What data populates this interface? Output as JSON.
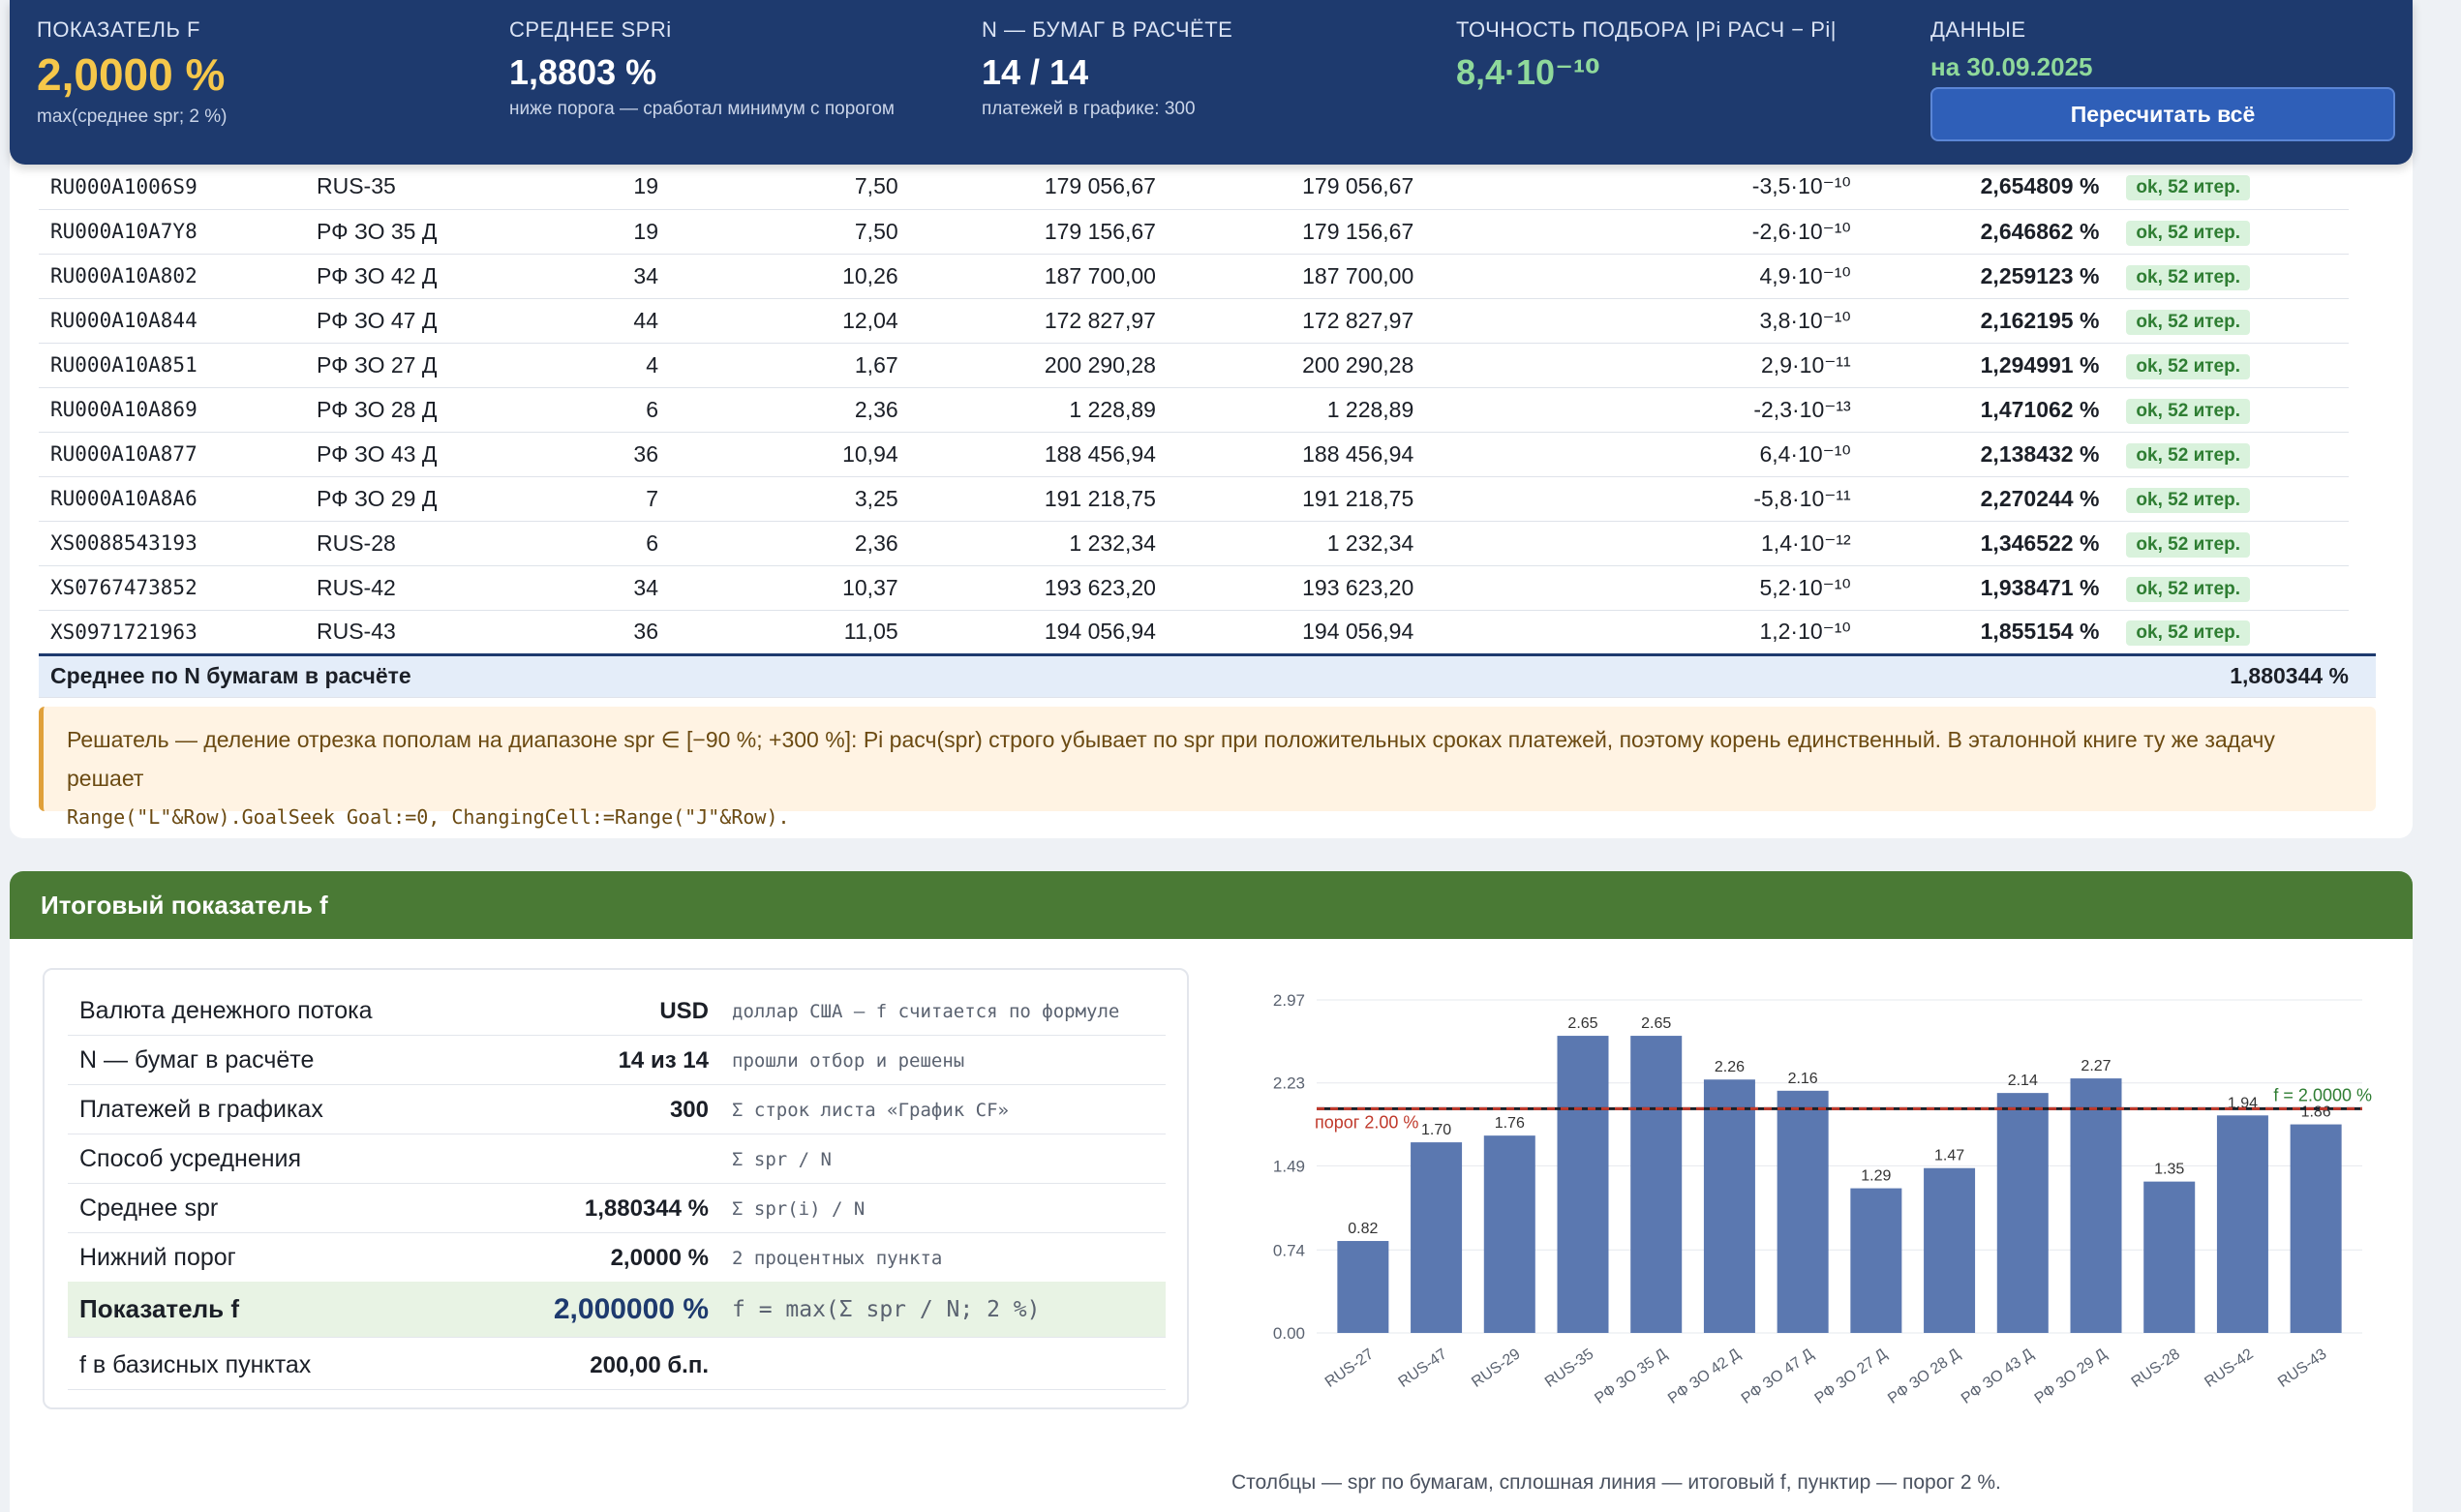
{
  "header": {
    "kpi1": {
      "label": "ПОКАЗАТЕЛЬ F",
      "value": "2,0000 %",
      "sub": "max(среднее spr; 2 %)"
    },
    "kpi2": {
      "label": "СРЕДНЕЕ SPRi",
      "value": "1,8803 %",
      "sub": "ниже порога — сработал минимум с порогом"
    },
    "kpi3": {
      "label": "N — БУМАГ В РАСЧЁТЕ",
      "value": "14 / 14",
      "sub": "платежей в графике: 300"
    },
    "kpi4": {
      "label": "ТОЧНОСТЬ ПОДБОРА |Pi РАСЧ − Pi|",
      "value": "8,4·10⁻¹⁰"
    },
    "kpi5": {
      "label": "ДАННЫЕ",
      "date": "на 30.09.2025"
    },
    "recalc_label": "Пересчитать всё"
  },
  "table": {
    "rows": [
      {
        "isin": "RU000A1006S9",
        "name": "RUS-35",
        "n": "19",
        "dur": "7,50",
        "p1": "179 056,67",
        "p2": "179 056,67",
        "err": "-3,5·10⁻¹⁰",
        "spr": "2,654809 %",
        "status": "ok, 52 итер."
      },
      {
        "isin": "RU000A10A7Y8",
        "name": "РФ ЗО 35 Д",
        "n": "19",
        "dur": "7,50",
        "p1": "179 156,67",
        "p2": "179 156,67",
        "err": "-2,6·10⁻¹⁰",
        "spr": "2,646862 %",
        "status": "ok, 52 итер."
      },
      {
        "isin": "RU000A10A802",
        "name": "РФ ЗО 42 Д",
        "n": "34",
        "dur": "10,26",
        "p1": "187 700,00",
        "p2": "187 700,00",
        "err": "4,9·10⁻¹⁰",
        "spr": "2,259123 %",
        "status": "ok, 52 итер."
      },
      {
        "isin": "RU000A10A844",
        "name": "РФ ЗО 47 Д",
        "n": "44",
        "dur": "12,04",
        "p1": "172 827,97",
        "p2": "172 827,97",
        "err": "3,8·10⁻¹⁰",
        "spr": "2,162195 %",
        "status": "ok, 52 итер."
      },
      {
        "isin": "RU000A10A851",
        "name": "РФ ЗО 27 Д",
        "n": "4",
        "dur": "1,67",
        "p1": "200 290,28",
        "p2": "200 290,28",
        "err": "2,9·10⁻¹¹",
        "spr": "1,294991 %",
        "status": "ok, 52 итер."
      },
      {
        "isin": "RU000A10A869",
        "name": "РФ ЗО 28 Д",
        "n": "6",
        "dur": "2,36",
        "p1": "1 228,89",
        "p2": "1 228,89",
        "err": "-2,3·10⁻¹³",
        "spr": "1,471062 %",
        "status": "ok, 52 итер."
      },
      {
        "isin": "RU000A10A877",
        "name": "РФ ЗО 43 Д",
        "n": "36",
        "dur": "10,94",
        "p1": "188 456,94",
        "p2": "188 456,94",
        "err": "6,4·10⁻¹⁰",
        "spr": "2,138432 %",
        "status": "ok, 52 итер."
      },
      {
        "isin": "RU000A10A8A6",
        "name": "РФ ЗО 29 Д",
        "n": "7",
        "dur": "3,25",
        "p1": "191 218,75",
        "p2": "191 218,75",
        "err": "-5,8·10⁻¹¹",
        "spr": "2,270244 %",
        "status": "ok, 52 итер."
      },
      {
        "isin": "XS0088543193",
        "name": "RUS-28",
        "n": "6",
        "dur": "2,36",
        "p1": "1 232,34",
        "p2": "1 232,34",
        "err": "1,4·10⁻¹²",
        "spr": "1,346522 %",
        "status": "ok, 52 итер."
      },
      {
        "isin": "XS0767473852",
        "name": "RUS-42",
        "n": "34",
        "dur": "10,37",
        "p1": "193 623,20",
        "p2": "193 623,20",
        "err": "5,2·10⁻¹⁰",
        "spr": "1,938471 %",
        "status": "ok, 52 итер."
      },
      {
        "isin": "XS0971721963",
        "name": "RUS-43",
        "n": "36",
        "dur": "11,05",
        "p1": "194 056,94",
        "p2": "194 056,94",
        "err": "1,2·10⁻¹⁰",
        "spr": "1,855154 %",
        "status": "ok, 52 итер."
      }
    ],
    "avg_label": "Среднее по N бумагам в расчёте",
    "avg_value": "1,880344 %"
  },
  "note": {
    "text": "Решатель — деление отрезка пополам на диапазоне spr ∈ [−90 %; +300 %]: Pi расч(spr) строго убывает по spr при положительных сроках платежей, поэтому корень единственный. В эталонной книге ту же задачу решает",
    "code": "Range(\"L\"&Row).GoalSeek Goal:=0, ChangingCell:=Range(\"J\"&Row)."
  },
  "results": {
    "title": "Итоговый показатель f",
    "rows": [
      {
        "key": "Валюта денежного потока",
        "value": "USD",
        "formula": "доллар США — f считается по формуле"
      },
      {
        "key": "N — бумаг в расчёте",
        "value": "14 из 14",
        "formula": "прошли отбор и решены"
      },
      {
        "key": "Платежей в графиках",
        "value": "300",
        "formula": "Σ строк листа «График CF»"
      },
      {
        "key": "Способ усреднения",
        "value": "",
        "formula": "Σ spr / N"
      },
      {
        "key": "Среднее spr",
        "value": "1,880344 %",
        "formula": "Σ spr(i) / N"
      },
      {
        "key": "Нижний порог",
        "value": "2,0000 %",
        "formula": "2 процентных пункта"
      },
      {
        "key": "Показатель f",
        "value": "2,000000 %",
        "formula": "f = max(Σ spr / N; 2 %)"
      },
      {
        "key": "f в базисных пунктах",
        "value": "200,00 б.п.",
        "formula": ""
      }
    ],
    "caption": "Столбцы — spr по бумагам, сплошная линия — итоговый f, пунктир — порог 2 %."
  },
  "chart_data": {
    "type": "bar",
    "categories": [
      "RUS-27",
      "RUS-47",
      "RUS-29",
      "RUS-35",
      "РФ ЗО 35 Д",
      "РФ ЗО 42 Д",
      "РФ ЗО 47 Д",
      "РФ ЗО 27 Д",
      "РФ ЗО 28 Д",
      "РФ ЗО 43 Д",
      "РФ ЗО 29 Д",
      "RUS-28",
      "RUS-42",
      "RUS-43"
    ],
    "values": [
      0.82,
      1.7,
      1.76,
      2.65,
      2.65,
      2.26,
      2.16,
      1.29,
      1.47,
      2.14,
      2.27,
      1.35,
      1.94,
      1.86
    ],
    "value_labels": [
      "0.82",
      "1.70",
      "1.76",
      "2.65",
      "2.65",
      "2.26",
      "2.16",
      "1.29",
      "1.47",
      "2.14",
      "2.27",
      "1.35",
      "1.94",
      "1.86"
    ],
    "yticks": [
      "0.00",
      "0.74",
      "1.49",
      "2.23",
      "2.97"
    ],
    "ylim": [
      0,
      2.97
    ],
    "threshold": {
      "value": 2.0,
      "label": "порог 2.00 %",
      "color": "#c0392b"
    },
    "f_line": {
      "value": 2.0,
      "label": "f = 2.0000 %",
      "color": "#2e7d32"
    },
    "bar_color": "#5b78b0",
    "grid": true
  }
}
